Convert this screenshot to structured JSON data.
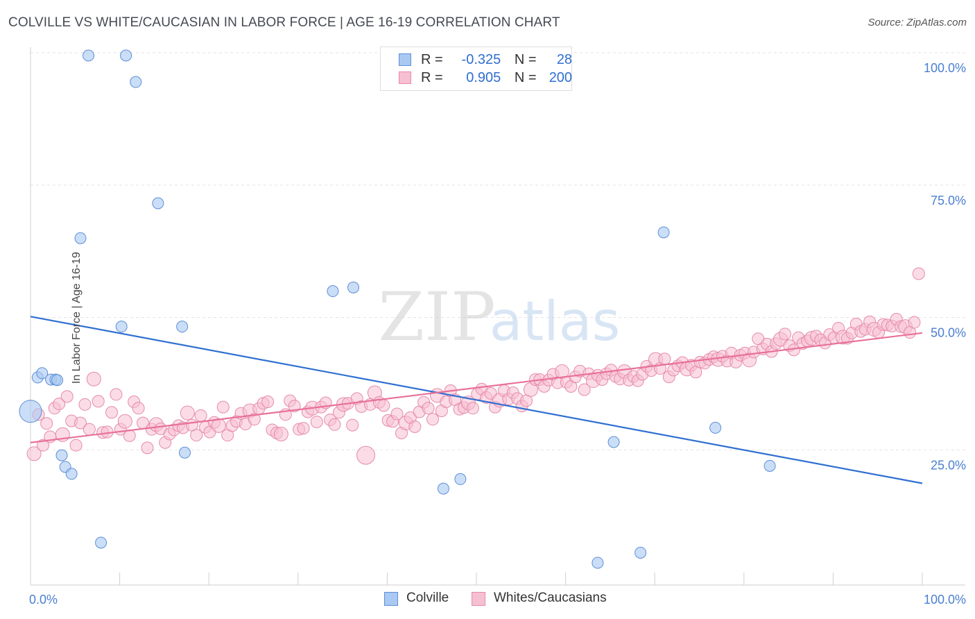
{
  "title": "COLVILLE VS WHITE/CAUCASIAN IN LABOR FORCE | AGE 16-19 CORRELATION CHART",
  "source": "Source: ZipAtlas.com",
  "watermark": {
    "zip": "ZIP",
    "atlas": "atlas"
  },
  "legend_top": {
    "rows": [
      {
        "r_label": "R =",
        "r_value": "-0.325",
        "n_label": "N =",
        "n_value": "28",
        "color": "#a9c8f2",
        "border": "#5b8ed6"
      },
      {
        "r_label": "R =",
        "r_value": "0.905",
        "n_label": "N =",
        "n_value": "200",
        "color": "#f7bfd2",
        "border": "#e58aaa"
      }
    ]
  },
  "chart_data": {
    "type": "scatter",
    "title": "COLVILLE VS WHITE/CAUCASIAN IN LABOR FORCE | AGE 16-19 CORRELATION CHART",
    "xlabel": "",
    "ylabel": "In Labor Force | Age 16-19",
    "xlim": [
      0,
      100
    ],
    "ylim": [
      0,
      100
    ],
    "x_tick_labels": [
      "0.0%",
      "100.0%"
    ],
    "y_tick_labels": [
      "100.0%",
      "75.0%",
      "50.0%",
      "25.0%"
    ],
    "grid": "horizontal dashed",
    "legend_position": "bottom",
    "series": [
      {
        "name": "Colville",
        "color": "#a9c8f2",
        "edge": "#5b8ed6",
        "trend_color": "#2f6fd1",
        "trend": {
          "x": [
            0,
            100
          ],
          "y": [
            50.7,
            19.2
          ]
        },
        "points": [
          [
            0,
            32.8
          ],
          [
            0.8,
            39.2
          ],
          [
            1.3,
            40
          ],
          [
            2.3,
            38.8
          ],
          [
            2.8,
            38.8
          ],
          [
            3.5,
            24.5
          ],
          [
            3.9,
            22.3
          ],
          [
            4.6,
            21
          ],
          [
            5.6,
            65.5
          ],
          [
            6.5,
            100
          ],
          [
            7.9,
            8
          ],
          [
            10.2,
            48.8
          ],
          [
            10.7,
            100
          ],
          [
            11.8,
            95
          ],
          [
            14.3,
            72.1
          ],
          [
            17,
            48.8
          ],
          [
            17.3,
            25
          ],
          [
            33.9,
            55.5
          ],
          [
            36.2,
            56.2
          ],
          [
            46.3,
            18.2
          ],
          [
            48.2,
            20
          ],
          [
            65.4,
            27
          ],
          [
            63.6,
            4.2
          ],
          [
            68.4,
            6.1
          ],
          [
            71,
            66.6
          ],
          [
            76.8,
            29.7
          ],
          [
            82.9,
            22.5
          ],
          [
            3.0,
            38.7
          ]
        ]
      },
      {
        "name": "Whites/Caucasians",
        "color": "#f7bfd2",
        "edge": "#e58aaa",
        "trend_color": "#e8709a",
        "trend": {
          "x": [
            0,
            100
          ],
          "y": [
            26.9,
            47.6
          ]
        },
        "points": [
          [
            0.4,
            24.8
          ],
          [
            0.9,
            32.2
          ],
          [
            1.4,
            26.4
          ],
          [
            1.8,
            30.5
          ],
          [
            2.2,
            28
          ],
          [
            2.7,
            33.4
          ],
          [
            3.2,
            34.2
          ],
          [
            3.6,
            28.4
          ],
          [
            4.1,
            35.6
          ],
          [
            4.6,
            31
          ],
          [
            5.1,
            26.4
          ],
          [
            5.6,
            30.6
          ],
          [
            6.1,
            34.1
          ],
          [
            6.6,
            29.4
          ],
          [
            7.1,
            38.9
          ],
          [
            7.6,
            34.7
          ],
          [
            8.1,
            28.8
          ],
          [
            8.6,
            28.9
          ],
          [
            9.1,
            32.6
          ],
          [
            9.6,
            36
          ],
          [
            10.1,
            29.4
          ],
          [
            10.6,
            30.9
          ],
          [
            11.1,
            28.2
          ],
          [
            11.6,
            34.6
          ],
          [
            12.1,
            33.4
          ],
          [
            12.6,
            30.6
          ],
          [
            13.1,
            25.9
          ],
          [
            13.6,
            29.4
          ],
          [
            14.1,
            30.3
          ],
          [
            14.6,
            29.5
          ],
          [
            15.1,
            26.9
          ],
          [
            15.6,
            28.5
          ],
          [
            16.1,
            29.3
          ],
          [
            16.6,
            30.1
          ],
          [
            17.1,
            29.7
          ],
          [
            17.6,
            32.5
          ],
          [
            18.1,
            30.2
          ],
          [
            18.6,
            28.3
          ],
          [
            19.1,
            32
          ],
          [
            19.6,
            29.8
          ],
          [
            20.1,
            28.9
          ],
          [
            20.6,
            30.7
          ],
          [
            21.1,
            30.1
          ],
          [
            21.6,
            33.6
          ],
          [
            22.1,
            28.3
          ],
          [
            22.6,
            30.1
          ],
          [
            23.1,
            30.9
          ],
          [
            23.6,
            32.4
          ],
          [
            24.1,
            30.4
          ],
          [
            24.6,
            32.9
          ],
          [
            25.1,
            31.3
          ],
          [
            25.6,
            33.3
          ],
          [
            26.1,
            34.3
          ],
          [
            26.6,
            34.6
          ],
          [
            27.1,
            29.3
          ],
          [
            27.6,
            28.7
          ],
          [
            28.1,
            28.5
          ],
          [
            28.6,
            32.2
          ],
          [
            29.1,
            34.8
          ],
          [
            29.6,
            33.8
          ],
          [
            30.1,
            29.4
          ],
          [
            30.6,
            29.6
          ],
          [
            31.1,
            32.7
          ],
          [
            31.6,
            33.4
          ],
          [
            32.1,
            30.8
          ],
          [
            32.6,
            33.6
          ],
          [
            33.1,
            34.4
          ],
          [
            33.6,
            31.2
          ],
          [
            34.1,
            30.3
          ],
          [
            34.6,
            32.6
          ],
          [
            35.1,
            34.1
          ],
          [
            35.6,
            34.3
          ],
          [
            36.1,
            30.2
          ],
          [
            36.6,
            35.2
          ],
          [
            37.1,
            33.7
          ],
          [
            37.6,
            24.5
          ],
          [
            38.1,
            34.1
          ],
          [
            38.6,
            36.3
          ],
          [
            39.1,
            34.5
          ],
          [
            39.6,
            33.9
          ],
          [
            40.1,
            31.1
          ],
          [
            40.6,
            30.9
          ],
          [
            41.1,
            32.3
          ],
          [
            41.6,
            28.7
          ],
          [
            42.1,
            30.6
          ],
          [
            42.6,
            31.6
          ],
          [
            43.1,
            29.9
          ],
          [
            43.6,
            32.7
          ],
          [
            44.1,
            34.5
          ],
          [
            44.6,
            33.4
          ],
          [
            45.1,
            31.3
          ],
          [
            45.6,
            35.8
          ],
          [
            46.1,
            32.9
          ],
          [
            46.6,
            34.6
          ],
          [
            47.1,
            36.7
          ],
          [
            47.6,
            35
          ],
          [
            48.1,
            33.2
          ],
          [
            48.6,
            33.5
          ],
          [
            49.1,
            34.4
          ],
          [
            49.6,
            33.4
          ],
          [
            50.1,
            36.1
          ],
          [
            50.6,
            37
          ],
          [
            51.1,
            35.4
          ],
          [
            51.6,
            36.2
          ],
          [
            52.1,
            33.6
          ],
          [
            52.6,
            34.9
          ],
          [
            53.1,
            36.7
          ],
          [
            53.6,
            35.1
          ],
          [
            54.1,
            36.3
          ],
          [
            54.6,
            35.2
          ],
          [
            55.1,
            33.8
          ],
          [
            55.6,
            34.8
          ],
          [
            56.1,
            36.9
          ],
          [
            56.6,
            38.8
          ],
          [
            57.1,
            38.8
          ],
          [
            57.6,
            37.5
          ],
          [
            58.1,
            38.7
          ],
          [
            58.6,
            39.8
          ],
          [
            59.1,
            38.2
          ],
          [
            59.6,
            40.3
          ],
          [
            60.1,
            38.3
          ],
          [
            60.6,
            37.5
          ],
          [
            61.1,
            39.3
          ],
          [
            61.6,
            40.4
          ],
          [
            62.1,
            36.9
          ],
          [
            62.6,
            39.9
          ],
          [
            63.1,
            38.6
          ],
          [
            63.6,
            39.6
          ],
          [
            64.1,
            38.8
          ],
          [
            64.6,
            39.9
          ],
          [
            65.1,
            40.6
          ],
          [
            65.6,
            39.4
          ],
          [
            66.1,
            38.9
          ],
          [
            66.6,
            40.3
          ],
          [
            67.1,
            38.7
          ],
          [
            67.6,
            39.4
          ],
          [
            68.1,
            38.6
          ],
          [
            68.6,
            39.8
          ],
          [
            69.1,
            41.3
          ],
          [
            69.6,
            40.5
          ],
          [
            70.1,
            42.6
          ],
          [
            70.6,
            40.9
          ],
          [
            71.1,
            42.7
          ],
          [
            71.6,
            39.3
          ],
          [
            72.1,
            40.6
          ],
          [
            72.6,
            41.4
          ],
          [
            73.1,
            42
          ],
          [
            73.6,
            40.8
          ],
          [
            74.1,
            41.5
          ],
          [
            74.6,
            40.2
          ],
          [
            75.1,
            42.1
          ],
          [
            75.6,
            41.9
          ],
          [
            76.1,
            42.6
          ],
          [
            76.6,
            43.1
          ],
          [
            77.1,
            42.6
          ],
          [
            77.6,
            43.2
          ],
          [
            78.1,
            42.3
          ],
          [
            78.6,
            43.8
          ],
          [
            79.1,
            42.1
          ],
          [
            79.6,
            43.4
          ],
          [
            80.1,
            43.8
          ],
          [
            80.6,
            42.5
          ],
          [
            81.1,
            44
          ],
          [
            81.6,
            46.5
          ],
          [
            82.1,
            44.6
          ],
          [
            82.6,
            45.5
          ],
          [
            83.1,
            44.1
          ],
          [
            83.6,
            45.6
          ],
          [
            84.1,
            46.4
          ],
          [
            84.6,
            47.4
          ],
          [
            85.1,
            45.2
          ],
          [
            85.6,
            44.4
          ],
          [
            86.1,
            46.7
          ],
          [
            86.6,
            45.6
          ],
          [
            87.1,
            46.1
          ],
          [
            87.6,
            46.6
          ],
          [
            88.1,
            47
          ],
          [
            88.6,
            46.3
          ],
          [
            89.1,
            45.7
          ],
          [
            89.6,
            47.3
          ],
          [
            90.1,
            46.7
          ],
          [
            90.6,
            48.5
          ],
          [
            91.1,
            46.8
          ],
          [
            91.6,
            46.6
          ],
          [
            92.1,
            47.6
          ],
          [
            92.6,
            49.3
          ],
          [
            93.1,
            47.9
          ],
          [
            93.6,
            48.3
          ],
          [
            94.1,
            49.7
          ],
          [
            94.6,
            48.3
          ],
          [
            95.1,
            47.7
          ],
          [
            95.6,
            49.2
          ],
          [
            96.1,
            49.1
          ],
          [
            96.6,
            48.9
          ],
          [
            97.1,
            50.2
          ],
          [
            97.6,
            48.8
          ],
          [
            98.1,
            48.8
          ],
          [
            98.6,
            47.7
          ],
          [
            99.1,
            49.6
          ],
          [
            99.6,
            58.8
          ]
        ]
      }
    ]
  },
  "legend_bottom": [
    {
      "label": "Colville",
      "color": "#a9c8f2",
      "border": "#5b8ed6"
    },
    {
      "label": "Whites/Caucasians",
      "color": "#f7bfd2",
      "border": "#e58aaa"
    }
  ]
}
